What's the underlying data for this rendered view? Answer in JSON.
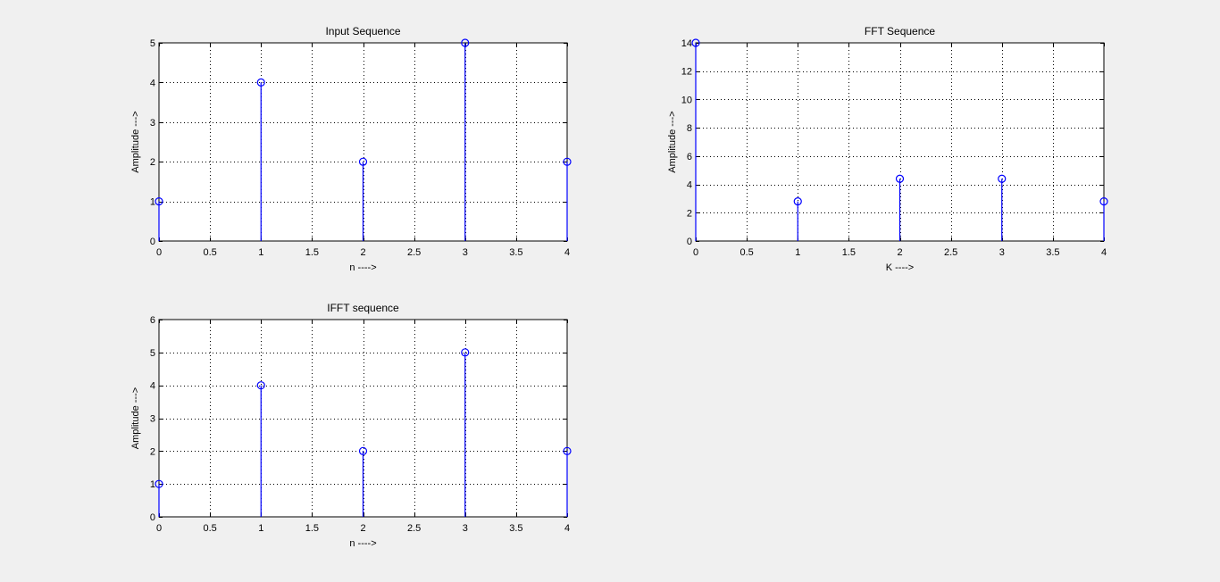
{
  "colors": {
    "background": "#f0f0f0",
    "axes_background": "#ffffff",
    "stem": "#0000ff"
  },
  "chart_data": [
    {
      "type": "stem",
      "title": "Input Sequence",
      "xlabel": "n ---->",
      "ylabel": "Amplitude --->",
      "x": [
        0,
        1,
        2,
        3,
        4
      ],
      "y": [
        1,
        4,
        2,
        5,
        2
      ],
      "xlim": [
        0,
        4
      ],
      "ylim": [
        0,
        5
      ],
      "xticks": [
        "0",
        "0.5",
        "1",
        "1.5",
        "2",
        "2.5",
        "3",
        "3.5",
        "4"
      ],
      "yticks": [
        "0",
        "1",
        "2",
        "3",
        "4",
        "5"
      ],
      "grid": true
    },
    {
      "type": "stem",
      "title": "FFT Sequence",
      "xlabel": "K ---->",
      "ylabel": "Amplitude --->",
      "x": [
        0,
        1,
        2,
        3,
        4
      ],
      "y": [
        14,
        2.8,
        4.4,
        4.4,
        2.8
      ],
      "xlim": [
        0,
        4
      ],
      "ylim": [
        0,
        14
      ],
      "xticks": [
        "0",
        "0.5",
        "1",
        "1.5",
        "2",
        "2.5",
        "3",
        "3.5",
        "4"
      ],
      "yticks": [
        "0",
        "2",
        "4",
        "6",
        "8",
        "10",
        "12",
        "14"
      ],
      "grid": true
    },
    {
      "type": "stem",
      "title": "IFFT sequence",
      "xlabel": "n ---->",
      "ylabel": "Amplitude --->",
      "x": [
        0,
        1,
        2,
        3,
        4
      ],
      "y": [
        1,
        4,
        2,
        5,
        2
      ],
      "xlim": [
        0,
        4
      ],
      "ylim": [
        0,
        6
      ],
      "xticks": [
        "0",
        "0.5",
        "1",
        "1.5",
        "2",
        "2.5",
        "3",
        "3.5",
        "4"
      ],
      "yticks": [
        "0",
        "1",
        "2",
        "3",
        "4",
        "5",
        "6"
      ],
      "grid": true
    }
  ]
}
